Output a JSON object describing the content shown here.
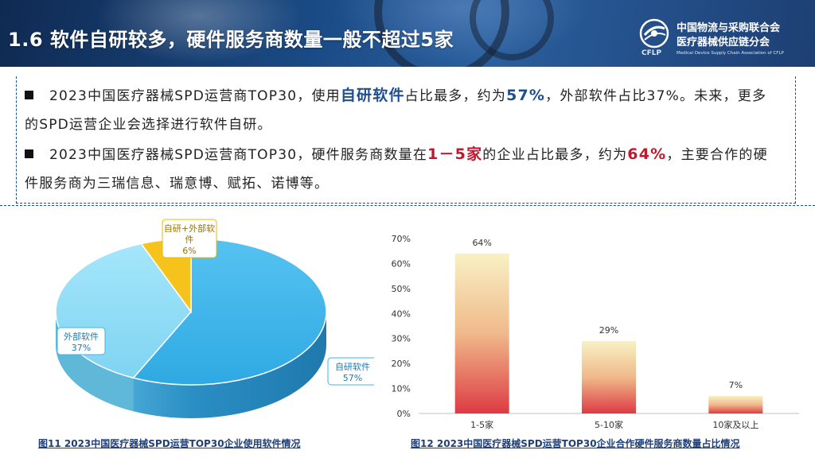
{
  "header": {
    "title": "1.6 软件自研较多，硬件服务商数量一般不超过5家",
    "org_line1": "中国物流与采购联合会",
    "org_line2": "医疗器械供应链分会",
    "org_abbr": "CFLP",
    "org_english": "Medical Device Supply Chain Association of CFLP"
  },
  "bullets": [
    {
      "pre": "2023中国医疗器械SPD运营商TOP30，使用",
      "hl1": "自研软件",
      "mid": "占比最多，约为",
      "hl2": "57%",
      "post": "，外部软件占比37%。未来，更多的SPD运营企业会选择进行软件自研。"
    },
    {
      "pre": "2023中国医疗器械SPD运营商TOP30，硬件服务商数量在",
      "hl1": "1－5家",
      "mid": "的企业占比最多，约为",
      "hl2": "64%",
      "post": "，主要合作的硬件服务商为三瑞信息、瑞意博、赋拓、诺博等。"
    }
  ],
  "captions": {
    "fig11": "图11 2023中国医疗器械SPD运营TOP30企业使用软件情况",
    "fig12": "图12 2023中国医疗器械SPD运营TOP30企业合作硬件服务商数量占比情况"
  },
  "chart_data": [
    {
      "type": "pie",
      "title": "",
      "slices": [
        {
          "label": "自研软件",
          "value": 57,
          "display": "57%",
          "color": "#3fb5ea"
        },
        {
          "label": "外部软件",
          "value": 37,
          "display": "37%",
          "color": "#8fdcf6"
        },
        {
          "label": "自研+外部软件",
          "value": 6,
          "display": "6%",
          "color": "#f6c21c"
        }
      ]
    },
    {
      "type": "bar",
      "title": "",
      "categories": [
        "1-5家",
        "5-10家",
        "10家及以上"
      ],
      "values": [
        64,
        29,
        7
      ],
      "value_labels": [
        "64%",
        "29%",
        "7%"
      ],
      "yticks": [
        "0%",
        "10%",
        "20%",
        "30%",
        "40%",
        "50%",
        "60%",
        "70%"
      ],
      "ylim": [
        0,
        70
      ],
      "grid": false,
      "colors": {
        "top": "#f8f1c4",
        "bottom": "#dd3b44"
      }
    }
  ]
}
